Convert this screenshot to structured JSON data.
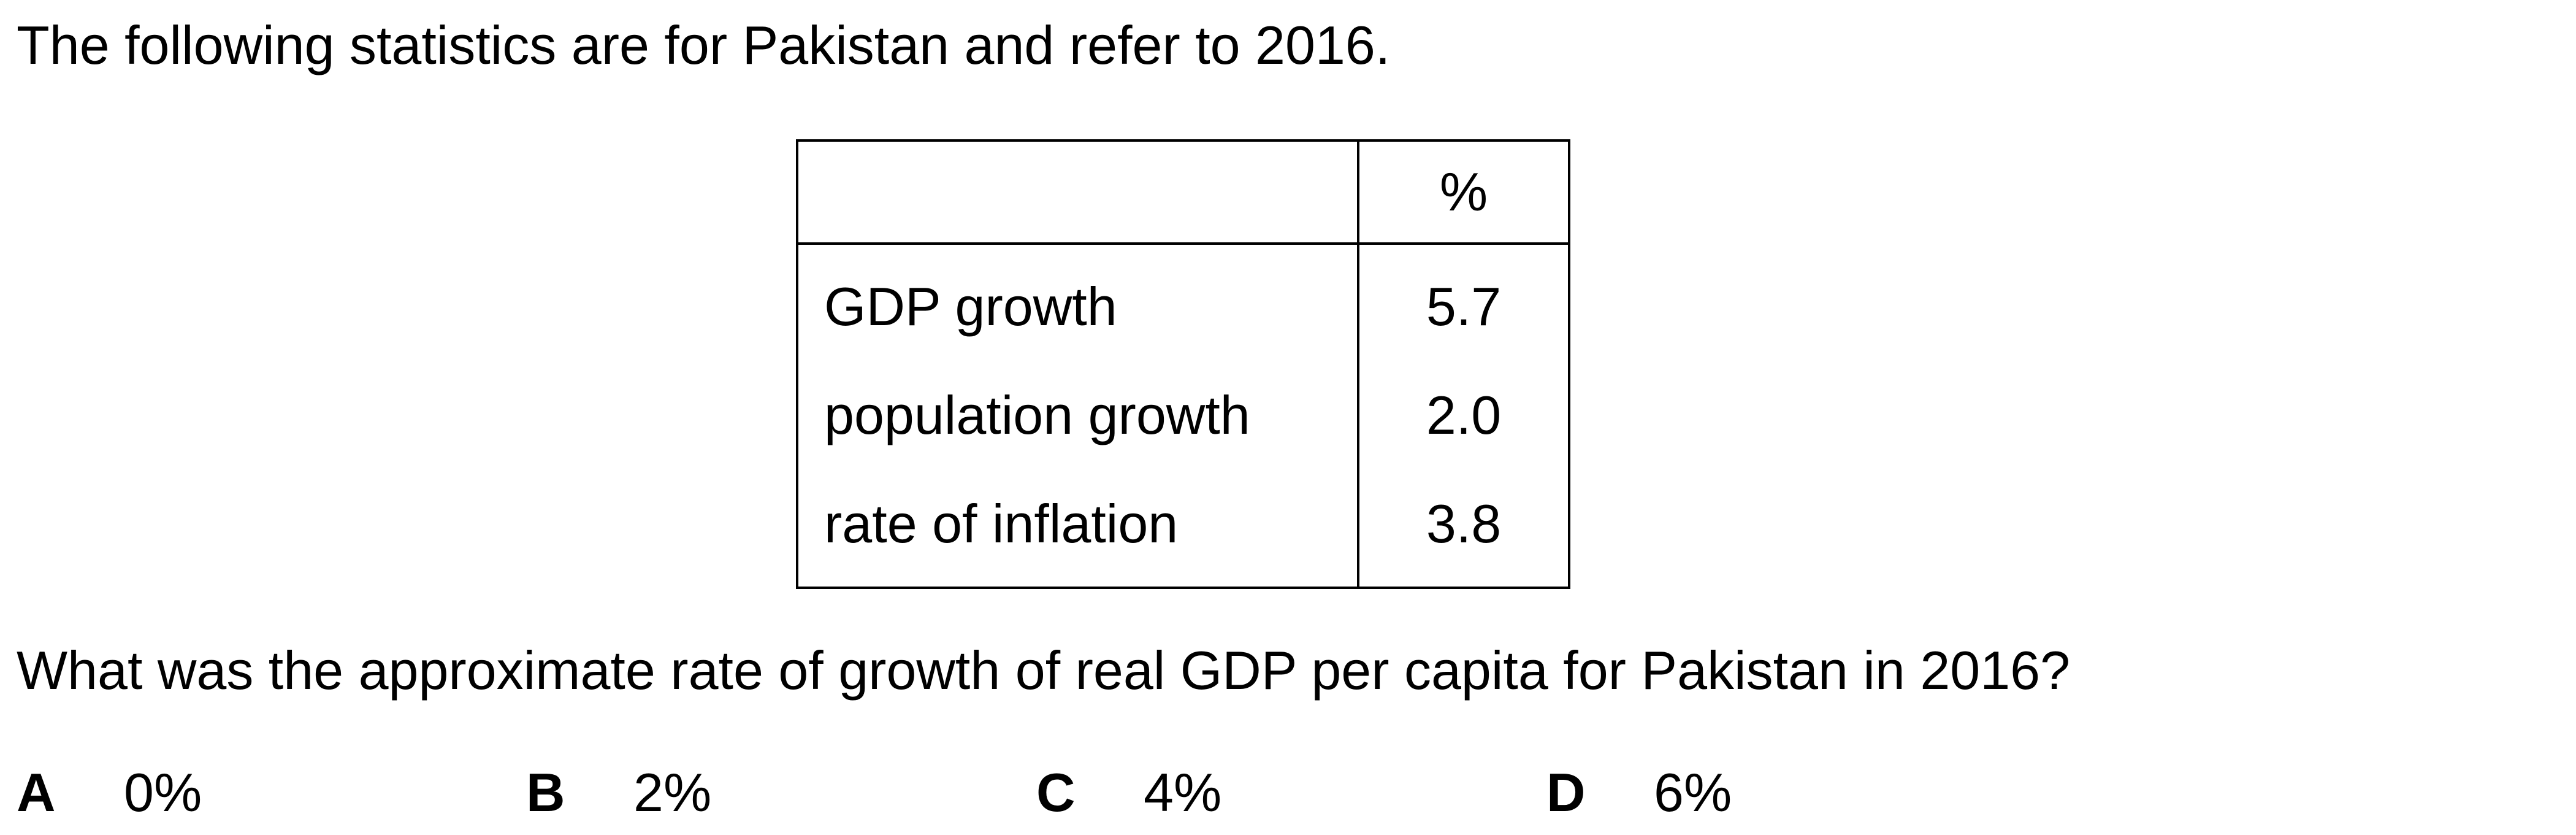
{
  "intro": "The following statistics are for Pakistan and refer to 2016.",
  "table": {
    "header": {
      "label": "",
      "value": "%"
    },
    "rows": [
      {
        "label": "GDP growth",
        "value": "5.7"
      },
      {
        "label": "population growth",
        "value": "2.0"
      },
      {
        "label": "rate of inflation",
        "value": "3.8"
      }
    ]
  },
  "question": "What was the approximate rate of growth of real GDP per capita for Pakistan in 2016?",
  "options": [
    {
      "letter": "A",
      "text": "0%"
    },
    {
      "letter": "B",
      "text": "2%"
    },
    {
      "letter": "C",
      "text": "4%"
    },
    {
      "letter": "D",
      "text": "6%"
    }
  ]
}
